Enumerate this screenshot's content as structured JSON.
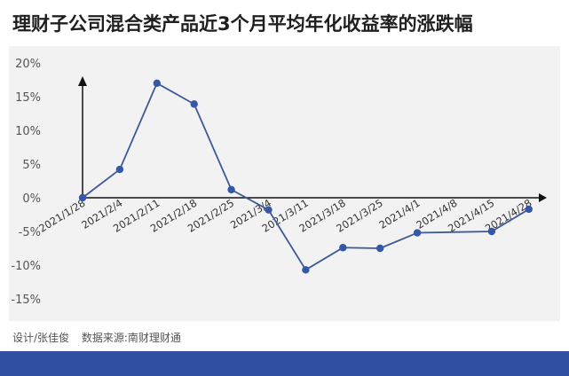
{
  "title": "理财子公司混合类产品近3个月平均年化收益率的涨跌幅",
  "footer": {
    "designer": "设计/张佳俊",
    "source": "数据来源:南财理财通"
  },
  "colors": {
    "line": "#3d5a98",
    "marker": "#3557a7",
    "panel": "#f2f2f2",
    "bar": "#2f4fa0"
  },
  "chart_data": {
    "type": "line",
    "title": "理财子公司混合类产品近3个月平均年化收益率的涨跌幅",
    "xlabel": "",
    "ylabel": "",
    "categories": [
      "2021/1/28",
      "2021/2/4",
      "2021/2/11",
      "2021/2/18",
      "2021/2/25",
      "2021/3/4",
      "2021/3/11",
      "2021/3/18",
      "2021/3/25",
      "2021/4/1",
      "2021/4/8",
      "2021/4/15",
      "2021/4/28"
    ],
    "series": [
      {
        "values": [
          0.0,
          4.2,
          17.0,
          13.9,
          1.2,
          -1.8,
          -10.7,
          -7.4,
          -7.5,
          -5.2,
          null,
          -5.0,
          -1.7
        ]
      }
    ],
    "yticks": [
      "20%",
      "15%",
      "10%",
      "5%",
      "0%",
      "-5%",
      "-10%",
      "-15%"
    ],
    "ylim": [
      -15,
      20
    ],
    "grid": false,
    "legend": "none"
  }
}
